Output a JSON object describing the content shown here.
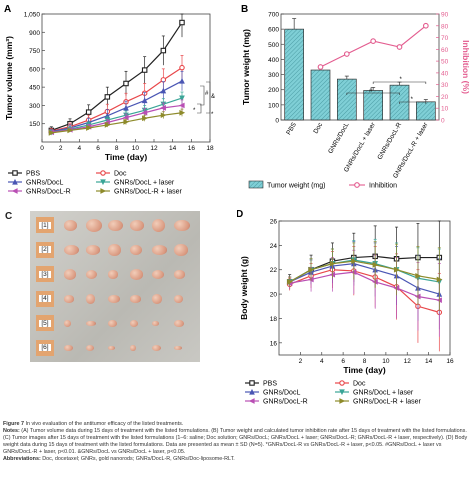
{
  "panels": {
    "A": {
      "letter": "A"
    },
    "B": {
      "letter": "B"
    },
    "C": {
      "letter": "C"
    },
    "D": {
      "letter": "D"
    }
  },
  "chart_data": [
    {
      "panel": "A",
      "type": "line",
      "xlabel": "Time (day)",
      "ylabel": "Tumor volume (mm³)",
      "xlim": [
        0,
        18
      ],
      "ylim": [
        0,
        1050
      ],
      "xticks": [
        0,
        2,
        4,
        6,
        8,
        10,
        12,
        14,
        16,
        18
      ],
      "yticks": [
        150,
        300,
        450,
        600,
        750,
        900,
        1050
      ],
      "ytick_labels": [
        "150",
        "300",
        "450",
        "600",
        "750",
        "900",
        "1,050"
      ],
      "x": [
        1,
        3,
        5,
        7,
        9,
        11,
        13,
        15
      ],
      "series": [
        {
          "name": "PBS",
          "color": "#222222",
          "marker": "square",
          "values": [
            95,
            150,
            245,
            370,
            480,
            590,
            750,
            980
          ],
          "err": [
            30,
            40,
            60,
            80,
            100,
            110,
            120,
            120
          ]
        },
        {
          "name": "Doc",
          "color": "#e8474a",
          "marker": "circle",
          "values": [
            90,
            125,
            180,
            250,
            330,
            400,
            510,
            610
          ],
          "err": [
            20,
            30,
            40,
            60,
            70,
            80,
            90,
            100
          ]
        },
        {
          "name": "GNRs/DocL",
          "color": "#4a56b4",
          "marker": "triangle-up",
          "values": [
            85,
            115,
            160,
            215,
            280,
            340,
            420,
            500
          ],
          "err": [
            15,
            25,
            35,
            50,
            55,
            65,
            75,
            80
          ]
        },
        {
          "name": "GNRs/DocL + laser",
          "color": "#3aa597",
          "marker": "triangle-down",
          "values": [
            80,
            105,
            140,
            180,
            220,
            260,
            310,
            360
          ],
          "err": [
            10,
            15,
            25,
            30,
            35,
            40,
            45,
            50
          ]
        },
        {
          "name": "GNRs/DocL-R",
          "color": "#b94fb4",
          "marker": "triangle-left",
          "values": [
            80,
            100,
            125,
            160,
            200,
            240,
            280,
            300
          ],
          "err": [
            10,
            15,
            20,
            25,
            30,
            35,
            40,
            45
          ]
        },
        {
          "name": "GNRs/DocL-R + laser",
          "color": "#8e8b2b",
          "marker": "triangle-right",
          "values": [
            75,
            95,
            115,
            140,
            165,
            195,
            220,
            240
          ],
          "err": [
            10,
            12,
            15,
            18,
            22,
            25,
            28,
            30
          ]
        }
      ],
      "annotations": [
        "#",
        "*",
        "&",
        "*"
      ]
    },
    {
      "panel": "B",
      "type": "bar",
      "categories": [
        "PBS",
        "Doc",
        "GNRs/DocL",
        "GNRs/DocL + laser",
        "GNRs/DocL-R",
        "GNRs/DocL-R + laser"
      ],
      "ylabel": "Tumor weight (mg)",
      "y2label": "Inhibition (%)",
      "ylim": [
        0,
        700
      ],
      "y2lim": [
        0,
        90
      ],
      "yticks": [
        0,
        100,
        200,
        300,
        400,
        500,
        600,
        700
      ],
      "y2ticks": [
        0,
        10,
        20,
        30,
        40,
        50,
        60,
        70,
        80,
        90
      ],
      "values": [
        600,
        330,
        270,
        195,
        230,
        120
      ],
      "err": [
        70,
        30,
        20,
        20,
        20,
        15
      ],
      "inhibition": [
        null,
        45,
        56,
        67,
        62,
        80
      ],
      "bar_color": "#7fcfd6",
      "line_color": "#e35c8f",
      "legend": [
        "Tumor weight (mg)",
        "Inhibition"
      ],
      "annotations": [
        "#",
        "*",
        "*"
      ]
    },
    {
      "panel": "D",
      "type": "line",
      "xlabel": "Time (day)",
      "ylabel": "Body weight (g)",
      "xlim": [
        0,
        16
      ],
      "ylim": [
        15,
        26
      ],
      "xticks": [
        2,
        4,
        6,
        8,
        10,
        12,
        14,
        16
      ],
      "yticks": [
        16,
        18,
        20,
        22,
        24,
        26
      ],
      "x": [
        1,
        3,
        5,
        7,
        9,
        11,
        13,
        15
      ],
      "series": [
        {
          "name": "PBS",
          "color": "#222222",
          "marker": "square",
          "values": [
            21.0,
            22.0,
            22.7,
            23.0,
            23.1,
            22.9,
            23.0,
            23.0
          ],
          "err": [
            0.6,
            1.2,
            1.5,
            2.0,
            2.5,
            2.6,
            2.8,
            3.0
          ]
        },
        {
          "name": "Doc",
          "color": "#e8474a",
          "marker": "circle",
          "values": [
            20.8,
            21.5,
            22.0,
            21.9,
            21.4,
            20.6,
            19.0,
            18.5
          ],
          "err": [
            0.5,
            1.0,
            1.5,
            2.0,
            2.5,
            2.7,
            3.0,
            3.2
          ]
        },
        {
          "name": "GNRs/DocL",
          "color": "#4a56b4",
          "marker": "triangle-up",
          "values": [
            21.0,
            21.8,
            22.3,
            22.5,
            22.0,
            21.5,
            20.5,
            20.0
          ],
          "err": [
            0.4,
            1.0,
            1.4,
            1.8,
            2.2,
            2.4,
            2.7,
            2.9
          ]
        },
        {
          "name": "GNRs/DocL + laser",
          "color": "#3aa597",
          "marker": "triangle-down",
          "values": [
            21.0,
            22.0,
            22.5,
            22.8,
            22.5,
            22.0,
            21.3,
            21.0
          ],
          "err": [
            0.4,
            0.9,
            1.2,
            1.6,
            2.0,
            2.2,
            2.5,
            2.7
          ]
        },
        {
          "name": "GNRs/DocL-R",
          "color": "#b94fb4",
          "marker": "triangle-left",
          "values": [
            20.9,
            21.2,
            21.6,
            21.8,
            21.0,
            20.5,
            19.8,
            19.5
          ],
          "err": [
            0.5,
            1.0,
            1.4,
            1.8,
            2.2,
            2.5,
            2.8,
            3.0
          ]
        },
        {
          "name": "GNRs/DocL-R + laser",
          "color": "#8e8b2b",
          "marker": "triangle-right",
          "values": [
            21.0,
            22.0,
            22.5,
            22.7,
            22.4,
            22.0,
            21.5,
            21.2
          ],
          "err": [
            0.4,
            0.9,
            1.2,
            1.5,
            1.9,
            2.1,
            2.4,
            2.6
          ]
        }
      ]
    }
  ],
  "photo": {
    "rows": [
      "[1]",
      "[2]",
      "[3]",
      "[4]",
      "[5]",
      "[6]"
    ],
    "tumor_counts": [
      6,
      6,
      6,
      6,
      6,
      6
    ]
  },
  "caption": {
    "title_label": "Figure 7",
    "title_text": " In vivo evaluation of the antitumor efficacy of the listed treatments.",
    "notes_label": "Notes:",
    "notes_text": " (A) Tumor volume data during 15 days of treatment with the listed formulations. (B) Tumor weight and calculated tumor inhibition rate after 15 days of treatment with the listed formulations. (C) Tumor images after 15 days of treatment with the listed formulations (1–6: saline; Doc solution; GNRs/DocL; GNRs/DocL + laser; GNRs/DocL-R; GNRs/DocL-R + laser, respectively). (D) Body weight data during 15 days of treatment with the listed formulations. Data are presented as mean ± SD (N=5). *GNRs/DocL-R vs GNRs/DocL-R + laser, p<0.05. #GNRs/DocL + laser vs GNRs/DocL-R + laser, p<0.01. &GNRs/DocL vs GNRs/DocL + laser, p<0.05.",
    "abbr_label": "Abbreviations:",
    "abbr_text": " Doc, docetaxel; GNRs, gold nanorods; GNRs/DocL-R, GNRs/Doc-liposome-RLT."
  }
}
